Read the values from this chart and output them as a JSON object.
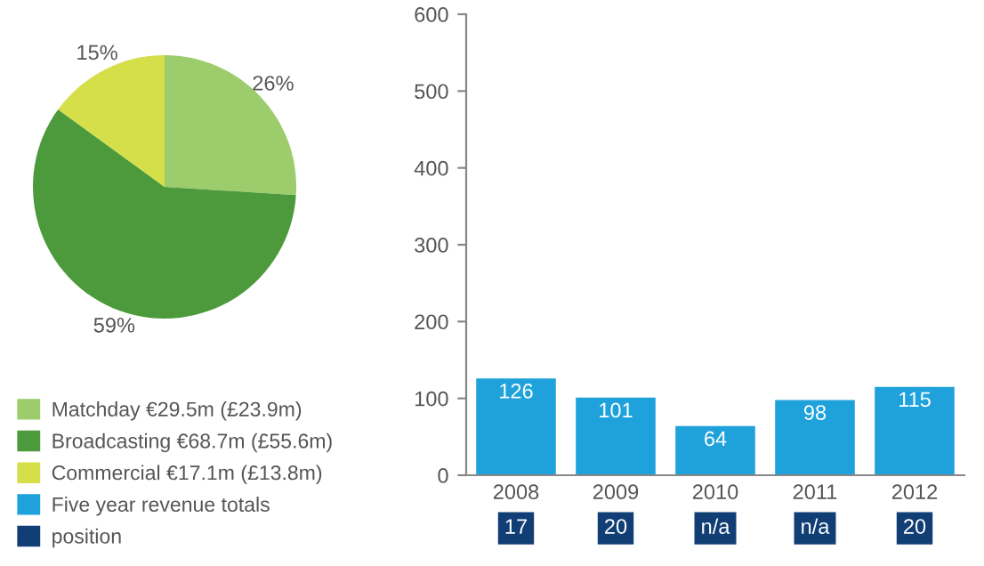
{
  "chart_data": [
    {
      "type": "pie",
      "categories": [
        "Matchday €29.5m (£23.9m)",
        "Broadcasting €68.7m (£55.6m)",
        "Commercial €17.1m (£13.8m)"
      ],
      "values": [
        26,
        59,
        15
      ],
      "colors": [
        "#9ccc6c",
        "#4c9a3c",
        "#d4df4a"
      ],
      "value_labels": [
        "26%",
        "59%",
        "15%"
      ],
      "legend": "bottom"
    },
    {
      "type": "bar",
      "categories": [
        "2008",
        "2009",
        "2010",
        "2011",
        "2012"
      ],
      "series": [
        {
          "name": "Five year revenue totals",
          "color": "#1fa2dc",
          "values": [
            126,
            101,
            64,
            98,
            115
          ]
        }
      ],
      "ylim": [
        0,
        600
      ],
      "yticks": [
        0,
        100,
        200,
        300,
        400,
        500,
        600
      ],
      "data_labels": true,
      "grid": false,
      "annotations": [
        "17",
        "20",
        "n/a",
        "n/a",
        "20",
        "position"
      ]
    }
  ]
}
